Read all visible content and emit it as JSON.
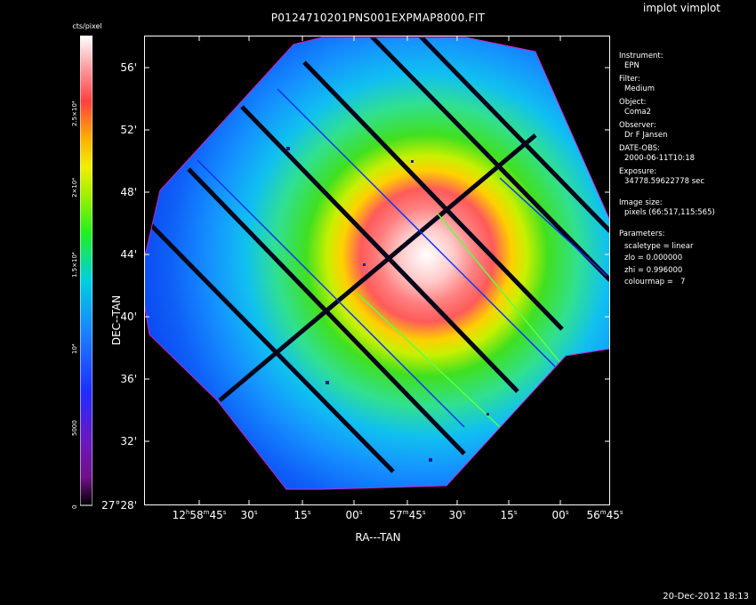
{
  "title": "P0124710201PNS001EXPMAP8000.FIT",
  "app_title": "implot vimplot",
  "timestamp": "20-Dec-2012 18:13",
  "colorbar": {
    "unit": "cts/pixel",
    "ticks": [
      "0",
      "5000",
      "10⁴",
      "1.5×10⁴",
      "2×10⁴",
      "2.5×10⁴"
    ]
  },
  "axes": {
    "ylabel": "DEC--TAN",
    "xlabel": "RA---TAN",
    "yticks": [
      "56'",
      "52'",
      "48'",
      "44'",
      "40'",
      "36'",
      "32'",
      "27°28'"
    ],
    "xticks": [
      {
        "main": "12",
        "sup1": "h",
        "mid": "58",
        "sup2": "m",
        "end": "45",
        "sup3": "s"
      },
      {
        "main": "30",
        "sup1": "s"
      },
      {
        "main": "15",
        "sup1": "s"
      },
      {
        "main": "00",
        "sup1": "s"
      },
      {
        "main": "57",
        "sup1": "m",
        "mid": "45",
        "sup2": "s"
      },
      {
        "main": "30",
        "sup1": "s"
      },
      {
        "main": "15",
        "sup1": "s"
      },
      {
        "main": "00",
        "sup1": "s"
      },
      {
        "main": "56",
        "sup1": "m",
        "mid": "45",
        "sup2": "s"
      }
    ]
  },
  "info": {
    "instrument_label": "Instrument:",
    "instrument_value": "EPN",
    "filter_label": "Filter:",
    "filter_value": "Medium",
    "object_label": "Object:",
    "object_value": "Coma2",
    "observer_label": "Observer:",
    "observer_value": "Dr F Jansen",
    "date_label": "DATE-OBS:",
    "date_value": "2000-06-11T10:18",
    "exposure_label": "Exposure:",
    "exposure_value": "34778.59622778 sec",
    "size_label": "Image size:",
    "size_value": "pixels (66:517,115:565)",
    "params_label": "Parameters:",
    "param_scaletype": "scaletype = linear",
    "param_zlo": "zlo = 0.000000",
    "param_zhi": "zhi = 0.996000",
    "param_colourmap": "colourmap =   7"
  }
}
